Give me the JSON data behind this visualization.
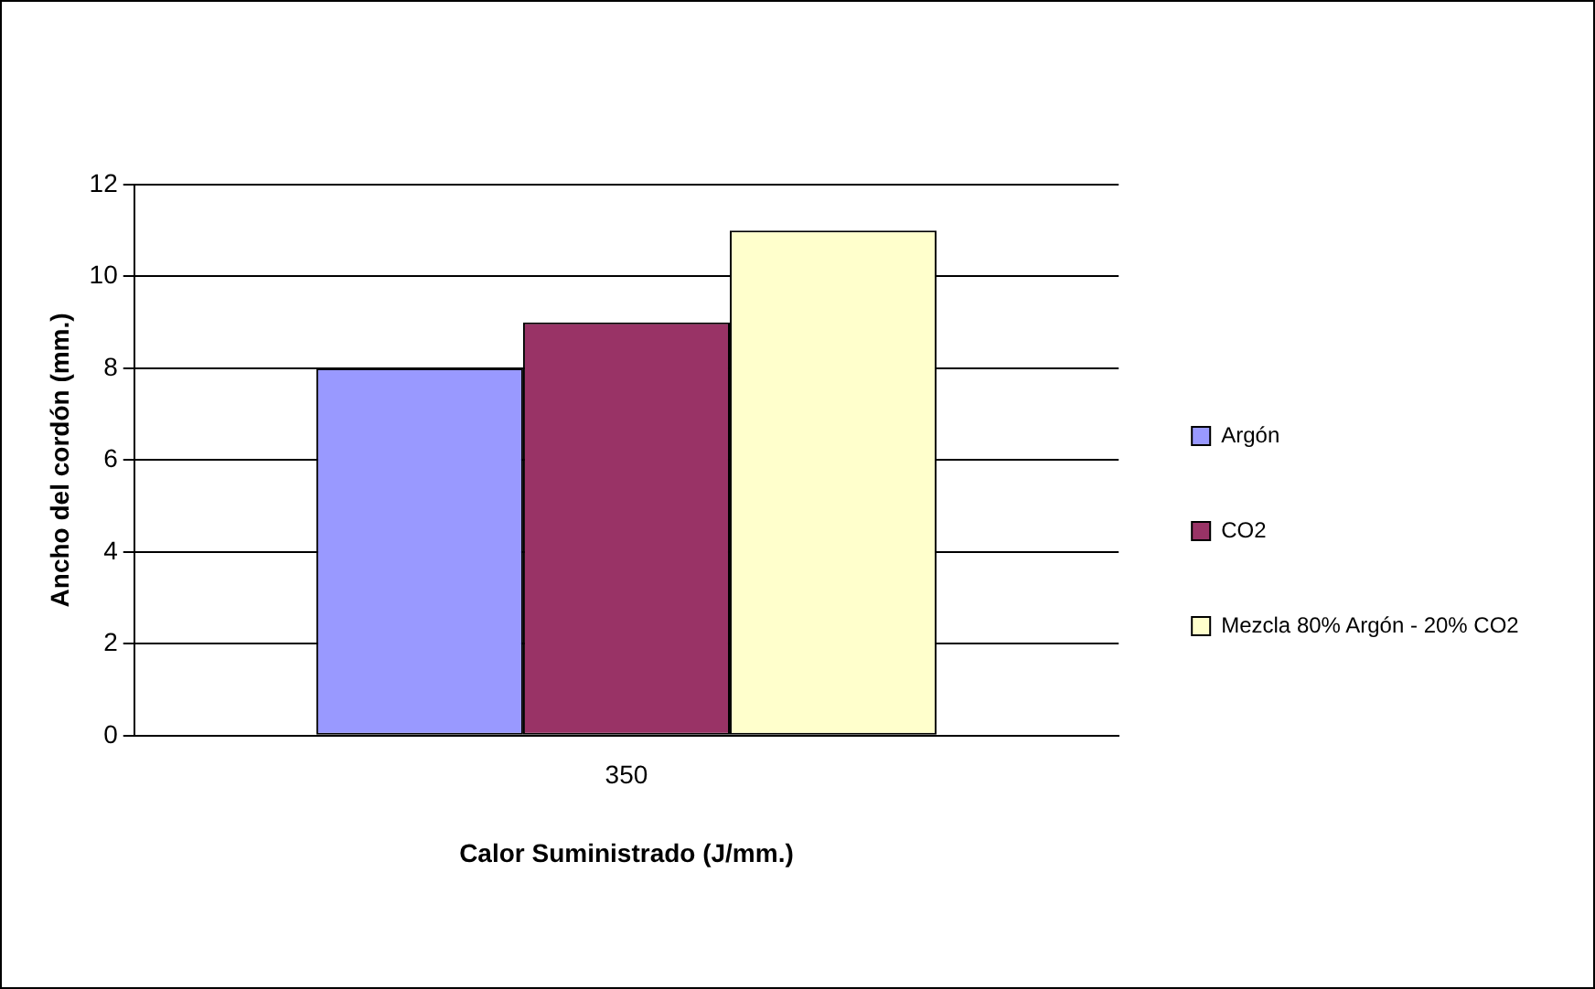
{
  "chart_data": {
    "type": "bar",
    "xlabel": "Calor Suministrado (J/mm.)",
    "ylabel": "Ancho del cordón (mm.)",
    "categories": [
      "350"
    ],
    "series": [
      {
        "name": "Argón",
        "color": "#9999ff",
        "values": [
          8
        ]
      },
      {
        "name": "CO2",
        "color": "#993366",
        "values": [
          9
        ]
      },
      {
        "name": "Mezcla 80% Argón - 20% CO2",
        "color": "#ffffcc",
        "values": [
          11
        ]
      }
    ],
    "ylim": [
      0,
      12
    ],
    "yticks": [
      0,
      2,
      4,
      6,
      8,
      10,
      12
    ],
    "grid": "y",
    "legend": "right"
  }
}
